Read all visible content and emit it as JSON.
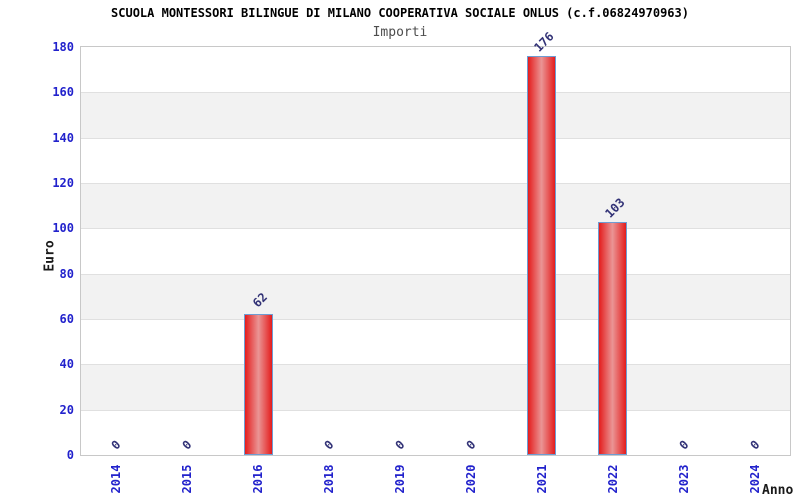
{
  "chart_data": {
    "type": "bar",
    "title": "SCUOLA MONTESSORI BILINGUE DI MILANO COOPERATIVA SOCIALE ONLUS (c.f.06824970963)",
    "subtitle": "Importi",
    "xlabel": "Anno",
    "ylabel": "Euro",
    "categories": [
      "2014",
      "2015",
      "2016",
      "2018",
      "2019",
      "2020",
      "2021",
      "2022",
      "2023",
      "2024"
    ],
    "values": [
      0,
      0,
      62,
      0,
      0,
      0,
      176,
      103,
      0,
      0
    ],
    "yticks": [
      0,
      20,
      40,
      60,
      80,
      100,
      120,
      140,
      160,
      180
    ],
    "ylim": [
      0,
      180
    ],
    "grid": "horizontal bands alternating white and light gray every 20 units, no vertical gridlines",
    "legend_position": "none",
    "tick_label_rotation": "x labels vertical, value labels diagonal 45deg",
    "colors": {
      "tick_label_blue": "#2222cc",
      "value_label_navy": "#333377",
      "bar_edge_red": "#e41d1d",
      "bar_center_red": "#ea9595",
      "bar_border_blue": "#6e9cd2",
      "band_gray": "#f2f2f2",
      "gridline": "#e0e0e0",
      "plot_border": "#c8c8c8",
      "title_color": "#000000",
      "subtitle_color": "#4d4d4d"
    }
  }
}
